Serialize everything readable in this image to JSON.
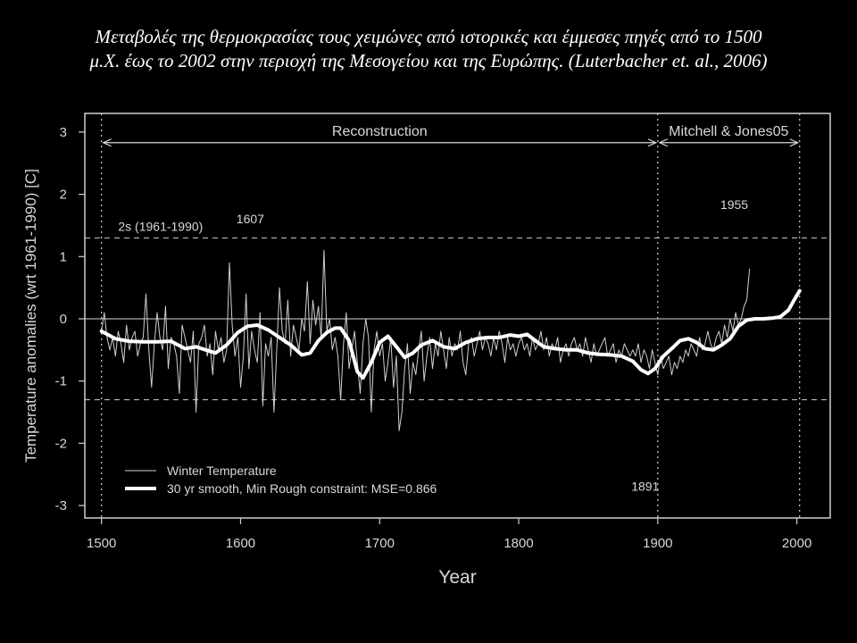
{
  "caption": {
    "line1": "Μεταβολές της θερμοκρασίας τους χειμώνες από ιστορικές και έμμεσες πηγές από το 1500",
    "line2": "μ.Χ. έως το 2002 στην περιοχή της Μεσογείου και της Ευρώπης. (Luterbacher et. al., 2006)"
  },
  "chart_data": {
    "type": "line",
    "title": "",
    "xlabel": "Year",
    "ylabel": "Temperature anomalies (wrt 1961-1990) [C]",
    "xlim": [
      1488,
      2024
    ],
    "ylim": [
      -3.2,
      3.3
    ],
    "xticks": [
      1500,
      1600,
      1700,
      1800,
      1900,
      2000
    ],
    "yticks": [
      3,
      2,
      1,
      0,
      -1,
      -2,
      -3
    ],
    "grid": false,
    "legend_position": "bottom-left",
    "background": "#000000",
    "foreground": "#e6e6e6",
    "reference_lines": {
      "zero": 0,
      "two_sigma_label": "2s (1961-1990)",
      "two_sigma_values": [
        1.3,
        -1.3
      ]
    },
    "periods": [
      {
        "label": "Reconstruction",
        "start": 1500,
        "end": 1900
      },
      {
        "label": "Mitchell & Jones05",
        "start": 1900,
        "end": 2002
      }
    ],
    "annotations": [
      {
        "text": "1607",
        "x": 1607,
        "y": 1.39
      },
      {
        "text": "1955",
        "x": 1955,
        "y": 1.62
      },
      {
        "text": "1891",
        "x": 1891,
        "y": -2.42
      }
    ],
    "series": [
      {
        "name": "Winter Temperature",
        "style": "thin",
        "x_start": 1500,
        "x_step": 2,
        "values": [
          -0.2,
          0.1,
          -0.3,
          -0.5,
          -0.3,
          -0.6,
          -0.2,
          -0.4,
          -0.7,
          -0.1,
          -0.5,
          -0.3,
          -0.2,
          -0.6,
          -0.4,
          -0.3,
          0.4,
          -0.5,
          -1.1,
          -0.4,
          0.1,
          -0.3,
          -0.5,
          0.2,
          -0.8,
          -0.3,
          -0.4,
          -0.6,
          -1.2,
          -0.1,
          -0.3,
          -0.5,
          -0.7,
          -0.2,
          -1.5,
          -0.4,
          -0.3,
          -0.1,
          -0.6,
          -0.4,
          -0.9,
          -0.2,
          -0.5,
          -0.3,
          -0.7,
          -0.5,
          0.9,
          -0.1,
          -0.6,
          -0.3,
          -1.1,
          -0.6,
          0.4,
          -0.8,
          -0.2,
          -0.5,
          -0.7,
          0.1,
          -1.4,
          -0.4,
          -0.6,
          -0.3,
          -1.5,
          -0.5,
          0.5,
          -0.2,
          -0.4,
          0.3,
          -0.6,
          -0.1,
          -0.3,
          -0.5,
          0.0,
          -0.2,
          0.6,
          -0.4,
          0.3,
          -0.1,
          0.2,
          -0.3,
          1.1,
          -0.2,
          0.0,
          -0.5,
          -0.3,
          -0.6,
          -1.3,
          -0.4,
          0.1,
          -0.8,
          -0.5,
          -0.2,
          -0.7,
          -1.2,
          -0.4,
          0.0,
          -0.3,
          -1.5,
          -0.5,
          -0.2,
          -0.6,
          -0.4,
          -1.0,
          -0.7,
          -0.3,
          -1.1,
          -0.6,
          -1.8,
          -1.5,
          -0.8,
          -0.4,
          -1.2,
          -0.7,
          -0.9,
          -0.5,
          -0.2,
          -1.0,
          -0.6,
          -0.3,
          -0.8,
          -0.4,
          -0.6,
          -0.2,
          -0.5,
          -0.8,
          -0.3,
          -0.6,
          -0.4,
          -0.5,
          -0.2,
          -0.7,
          -0.9,
          -0.4,
          -0.3,
          -0.6,
          -0.4,
          -0.2,
          -0.5,
          -0.3,
          -0.4,
          -0.6,
          -0.3,
          -0.5,
          -0.2,
          -0.4,
          -0.7,
          -0.3,
          -0.5,
          -0.4,
          -0.6,
          -0.4,
          -0.3,
          -0.5,
          -0.4,
          -0.6,
          -0.3,
          -0.5,
          -0.4,
          -0.2,
          -0.5,
          -0.3,
          -0.6,
          -0.4,
          -0.5,
          -0.3,
          -0.7,
          -0.5,
          -0.4,
          -0.6,
          -0.4,
          -0.3,
          -0.5,
          -0.4,
          -0.6,
          -0.3,
          -0.5,
          -0.7,
          -0.4,
          -0.6,
          -0.5,
          -0.4,
          -0.3,
          -0.6,
          -0.5,
          -0.4,
          -0.7,
          -0.5,
          -0.6,
          -0.4,
          -0.5,
          -0.6,
          -0.5,
          -0.6,
          -0.4,
          -0.7,
          -0.5,
          -0.6,
          -0.8,
          -0.5,
          -0.7,
          -0.9,
          -0.6,
          -0.8,
          -0.7,
          -0.6,
          -0.9,
          -0.7,
          -0.8,
          -0.6,
          -0.7,
          -0.5,
          -0.6,
          -0.4,
          -0.5,
          -0.6,
          -0.3,
          -0.5,
          -0.4,
          -0.2,
          -0.4,
          -0.5,
          -0.3,
          -0.2,
          -0.4,
          -0.1,
          -0.3,
          0.0,
          -0.2,
          0.1,
          -0.1,
          0.0,
          0.2,
          0.3,
          0.8
        ]
      },
      {
        "name": "30 yr smooth, Min Rough constraint: MSE=0.866",
        "style": "thick",
        "points": [
          [
            1500,
            -0.2
          ],
          [
            1510,
            -0.32
          ],
          [
            1520,
            -0.36
          ],
          [
            1530,
            -0.37
          ],
          [
            1540,
            -0.37
          ],
          [
            1550,
            -0.36
          ],
          [
            1555,
            -0.42
          ],
          [
            1560,
            -0.48
          ],
          [
            1568,
            -0.45
          ],
          [
            1575,
            -0.5
          ],
          [
            1582,
            -0.55
          ],
          [
            1590,
            -0.42
          ],
          [
            1598,
            -0.22
          ],
          [
            1605,
            -0.12
          ],
          [
            1612,
            -0.1
          ],
          [
            1620,
            -0.18
          ],
          [
            1628,
            -0.3
          ],
          [
            1636,
            -0.42
          ],
          [
            1644,
            -0.58
          ],
          [
            1650,
            -0.55
          ],
          [
            1656,
            -0.35
          ],
          [
            1662,
            -0.22
          ],
          [
            1668,
            -0.15
          ],
          [
            1672,
            -0.15
          ],
          [
            1678,
            -0.35
          ],
          [
            1684,
            -0.85
          ],
          [
            1688,
            -0.95
          ],
          [
            1694,
            -0.7
          ],
          [
            1700,
            -0.38
          ],
          [
            1706,
            -0.28
          ],
          [
            1712,
            -0.45
          ],
          [
            1718,
            -0.62
          ],
          [
            1724,
            -0.55
          ],
          [
            1730,
            -0.42
          ],
          [
            1738,
            -0.35
          ],
          [
            1746,
            -0.45
          ],
          [
            1754,
            -0.48
          ],
          [
            1762,
            -0.38
          ],
          [
            1770,
            -0.32
          ],
          [
            1778,
            -0.3
          ],
          [
            1786,
            -0.3
          ],
          [
            1794,
            -0.26
          ],
          [
            1800,
            -0.28
          ],
          [
            1806,
            -0.25
          ],
          [
            1812,
            -0.35
          ],
          [
            1818,
            -0.45
          ],
          [
            1826,
            -0.48
          ],
          [
            1834,
            -0.5
          ],
          [
            1842,
            -0.5
          ],
          [
            1850,
            -0.55
          ],
          [
            1858,
            -0.57
          ],
          [
            1866,
            -0.58
          ],
          [
            1874,
            -0.6
          ],
          [
            1882,
            -0.68
          ],
          [
            1888,
            -0.82
          ],
          [
            1893,
            -0.88
          ],
          [
            1898,
            -0.8
          ],
          [
            1904,
            -0.6
          ],
          [
            1910,
            -0.48
          ],
          [
            1916,
            -0.35
          ],
          [
            1922,
            -0.32
          ],
          [
            1928,
            -0.38
          ],
          [
            1934,
            -0.48
          ],
          [
            1940,
            -0.5
          ],
          [
            1946,
            -0.42
          ],
          [
            1952,
            -0.32
          ],
          [
            1958,
            -0.12
          ],
          [
            1964,
            -0.02
          ],
          [
            1970,
            0.0
          ],
          [
            1976,
            0.0
          ],
          [
            1982,
            0.01
          ],
          [
            1988,
            0.03
          ],
          [
            1994,
            0.14
          ],
          [
            1998,
            0.3
          ],
          [
            2002,
            0.45
          ]
        ]
      }
    ]
  }
}
